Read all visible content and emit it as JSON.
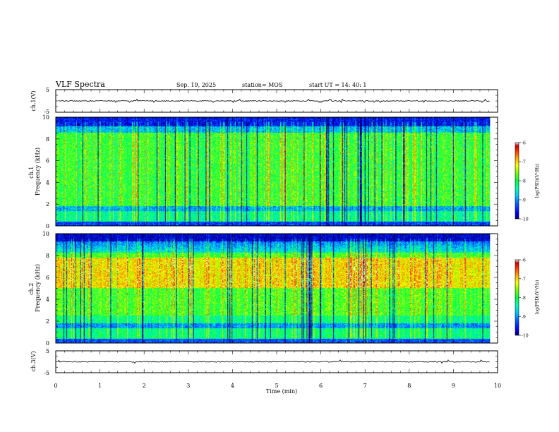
{
  "header": {
    "title": "VLF Spectra",
    "date": "Sep. 19, 2025",
    "station": "station= MOS",
    "start": "start  UT  =   14: 40: 1"
  },
  "colors": {
    "scale": [
      "#000080",
      "#0000ff",
      "#0064ff",
      "#00c8ff",
      "#00ffb4",
      "#00ff3c",
      "#78ff00",
      "#ffff00",
      "#ffa000",
      "#ff2800",
      "#c80000",
      "#ffffff"
    ],
    "trace": "#000000"
  },
  "chart_data": [
    {
      "type": "line",
      "name": "ch1-waveform",
      "ylabel": "ch.1(V)",
      "ylim": [
        -5,
        5
      ],
      "yticks": [
        "5",
        "-5"
      ],
      "xlim": [
        0,
        10
      ],
      "approx_value": 0
    },
    {
      "type": "heatmap",
      "name": "ch1-spectrogram",
      "ylabel": "ch.1\nFrequency  (kHz)",
      "ylabel_lines": [
        "ch.1",
        "Frequency  (kHz)"
      ],
      "ylim": [
        0,
        10
      ],
      "yticks": [
        "0",
        "2",
        "4",
        "6",
        "8",
        "10"
      ],
      "xlim": [
        0,
        10
      ],
      "data_end_min": 9.83,
      "colorbar": {
        "label": "log(PSD)(V²/Hz)",
        "ticks": [
          "-6",
          "-7",
          "-8",
          "-9",
          "-10"
        ],
        "range": [
          -10,
          -6
        ]
      }
    },
    {
      "type": "heatmap",
      "name": "ch2-spectrogram",
      "ylabel": "ch.2\nFrequency  (kHz)",
      "ylabel_lines": [
        "ch.2",
        "Frequency  (kHz)"
      ],
      "ylim": [
        0,
        10
      ],
      "yticks": [
        "0",
        "2",
        "4",
        "6",
        "8",
        "10"
      ],
      "xlim": [
        0,
        10
      ],
      "data_end_min": 9.83,
      "colorbar": {
        "label": "log(PSD)(V²/Hz)",
        "ticks": [
          "-6",
          "-7",
          "-8",
          "-9",
          "-10"
        ],
        "range": [
          -10,
          -6
        ]
      }
    },
    {
      "type": "line",
      "name": "ch3-waveform",
      "ylabel": "ch.3(V)",
      "ylim": [
        -5,
        5
      ],
      "yticks": [
        "5",
        "-5"
      ],
      "xlim": [
        0,
        10
      ],
      "approx_value": 0,
      "xlabel": "Time  (min)",
      "xticks": [
        "0",
        "1",
        "2",
        "3",
        "4",
        "5",
        "6",
        "7",
        "8",
        "9",
        "10"
      ]
    }
  ]
}
